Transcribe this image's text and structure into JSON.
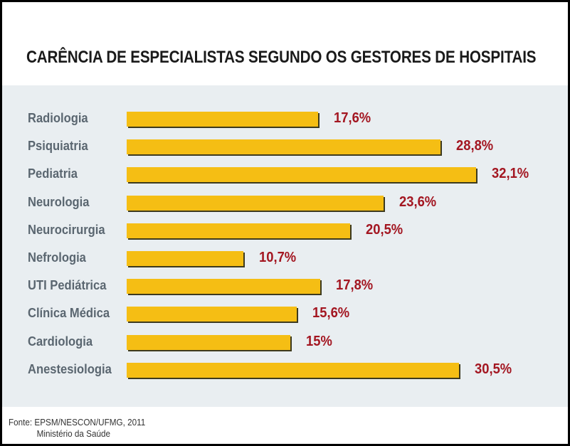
{
  "chart_data": {
    "type": "bar",
    "orientation": "horizontal",
    "title": "CARÊNCIA DE ESPECIALISTAS SEGUNDO OS GESTORES DE HOSPITAIS",
    "categories": [
      "Radiologia",
      "Psiquiatria",
      "Pediatria",
      "Neurologia",
      "Neurocirurgia",
      "Nefrologia",
      "UTI Pediátrica",
      "Clínica Médica",
      "Cardiologia",
      "Anestesiologia"
    ],
    "values": [
      17.6,
      28.8,
      32.1,
      23.6,
      20.5,
      10.7,
      17.8,
      15.6,
      15,
      30.5
    ],
    "labels": [
      "17,6%",
      "28,8%",
      "32,1%",
      "23,6%",
      "20,5%",
      "10,7%",
      "17,8%",
      "15,6%",
      "15%",
      "30,5%"
    ],
    "unit": "%",
    "xlabel": "",
    "ylabel": "",
    "grid": false,
    "colors": {
      "bar": "#f5be14",
      "value": "#a31621",
      "category": "#5a6670",
      "background": "#e9eef1"
    }
  },
  "source": {
    "line1": "Fonte: EPSM/NESCON/UFMG, 2011",
    "line2": "Ministério da Saúde"
  }
}
